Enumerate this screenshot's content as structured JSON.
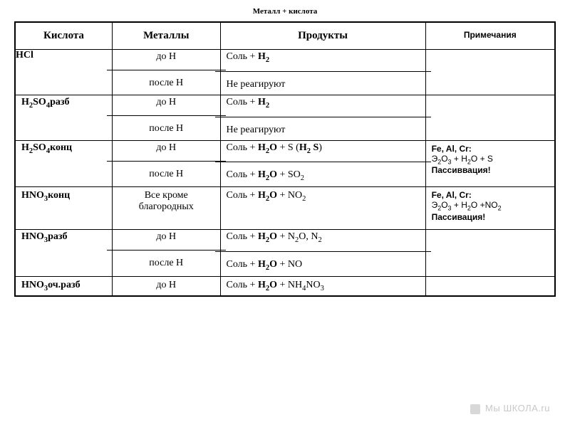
{
  "title": "Металл + кислота",
  "headers": {
    "acid": "Кислота",
    "metals": "Металлы",
    "products": "Продукты",
    "notes": "Примечания"
  },
  "rows": {
    "hcl": {
      "acid_html": "HCl",
      "metals_top": "до Н",
      "metals_bot": "после Н",
      "products_top_html": "Соль + <b>H<sub>2</sub></b>",
      "products_bot": "Не реагируют",
      "notes": ""
    },
    "h2so4_dil": {
      "acid_html": "H<sub>2</sub>SO<sub>4</sub>разб",
      "metals_top": "до Н",
      "metals_bot": "после Н",
      "products_top_html": "Соль + <b>H<sub>2</sub></b>",
      "products_bot": "Не реагируют",
      "notes": ""
    },
    "h2so4_conc": {
      "acid_html": "H<sub>2</sub>SO<sub>4</sub>конц",
      "metals_top": "до Н",
      "metals_bot": "после Н",
      "products_top_html": "Соль + <b>H<sub>2</sub>O</b> + S (<b>H<sub>2</sub> S</b>)",
      "products_bot_html": "Соль + <b>H<sub>2</sub>O</b> + SO<sub>2</sub>",
      "notes_html": "<b>Fe, Al, Cr:</b><br>Э<sub>2</sub>О<sub>3</sub> + H<sub>2</sub>O + S<br><b>Пассиввация!</b>"
    },
    "hno3_conc": {
      "acid_html": "HNO<sub>3</sub>конц",
      "metals": "Все кроме благородных",
      "products_html": "Соль + <b>H<sub>2</sub>O</b> + NO<sub>2</sub>",
      "notes_html": "<b>Fe, Al, Cr:</b><br>Э<sub>2</sub>О<sub>3</sub> + H<sub>2</sub>O +NO<sub>2</sub><br><b>Пассивация!</b>"
    },
    "hno3_dil": {
      "acid_html": "HNO<sub>3</sub>разб",
      "metals_top": "до Н",
      "metals_bot": "после Н",
      "products_top_html": "Соль + <b>H<sub>2</sub>O</b> + N<sub>2</sub>O, N<sub>2</sub>",
      "products_bot_html": "Соль + <b>H<sub>2</sub>O</b> + NO",
      "notes": ""
    },
    "hno3_vdil": {
      "acid_html": "HNO<sub>3</sub>оч.разб",
      "metals": "до Н",
      "products_html": "Соль + <b>H<sub>2</sub>O</b> + NH<sub>4</sub>NO<sub>3</sub>",
      "notes": ""
    }
  },
  "watermark": "Мы ШКОЛА.ru",
  "style": {
    "border_color": "#000000",
    "background_color": "#ffffff",
    "title_fontsize": 11,
    "header_fontsize": 15,
    "cell_fontsize": 14,
    "notes_fontsize": 12,
    "watermark_color": "#c8c8c8"
  }
}
